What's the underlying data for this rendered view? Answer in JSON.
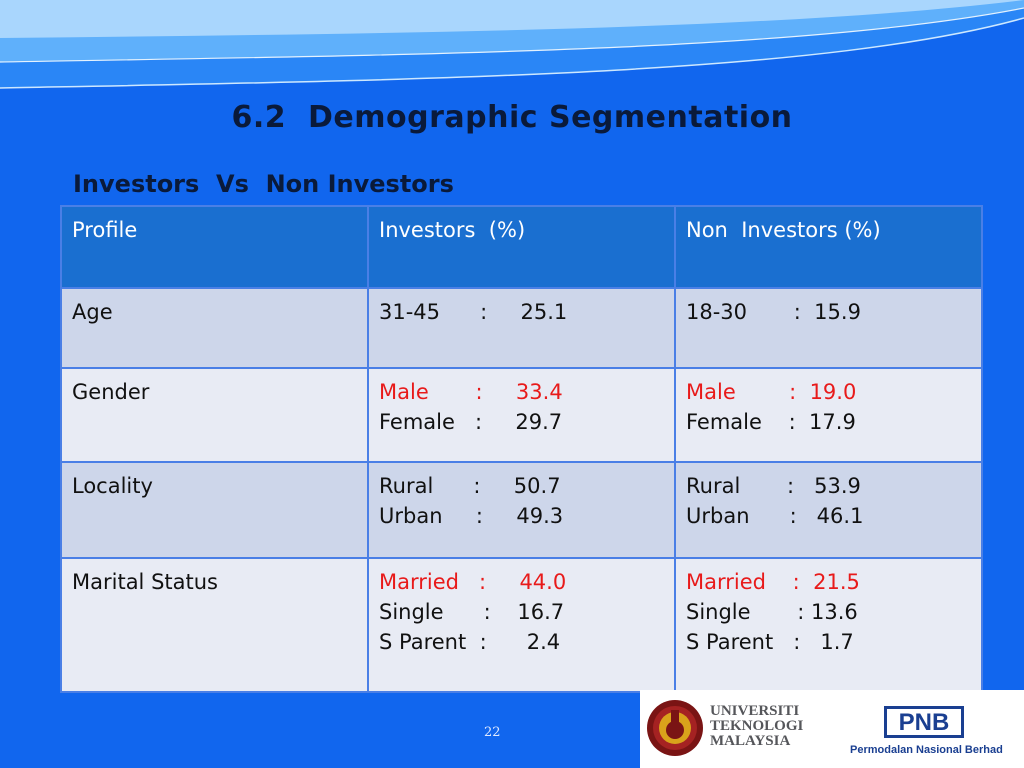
{
  "slide": {
    "title": "6.2  Demographic Segmentation",
    "subtitle": "Investors  Vs  Non Investors",
    "page_number": "22"
  },
  "table": {
    "headers": [
      "Profile",
      "Investors  (%)",
      "Non  Investors (%)"
    ],
    "rows": [
      {
        "profile": "Age",
        "investors": [
          {
            "text": "31-45      :     25.1",
            "highlight": false
          }
        ],
        "non_investors": [
          {
            "text": "18-30       :  15.9",
            "highlight": false
          }
        ]
      },
      {
        "profile": "Gender",
        "investors": [
          {
            "text": "Male       :     33.4",
            "highlight": true
          },
          {
            "text": "Female   :     29.7",
            "highlight": false
          }
        ],
        "non_investors": [
          {
            "text": "Male        :  19.0",
            "highlight": true
          },
          {
            "text": "Female    :  17.9",
            "highlight": false
          }
        ]
      },
      {
        "profile": "Locality",
        "investors": [
          {
            "text": "Rural      :     50.7",
            "highlight": false
          },
          {
            "text": "Urban     :     49.3",
            "highlight": false
          }
        ],
        "non_investors": [
          {
            "text": "Rural       :   53.9",
            "highlight": false
          },
          {
            "text": "Urban      :   46.1",
            "highlight": false
          }
        ]
      },
      {
        "profile": "Marital Status",
        "investors": [
          {
            "text": "Married   :     44.0",
            "highlight": true
          },
          {
            "text": "Single      :    16.7",
            "highlight": false
          },
          {
            "text": "S Parent  :      2.4",
            "highlight": false
          }
        ],
        "non_investors": [
          {
            "text": "Married    :  21.5",
            "highlight": true
          },
          {
            "text": "Single       : 13.6",
            "highlight": false
          },
          {
            "text": "S Parent   :   1.7",
            "highlight": false
          }
        ]
      }
    ]
  },
  "logos": {
    "utm": "UNIVERSITI\nTEKNOLOGI\nMALAYSIA",
    "pnb": "PNB",
    "pnb_name": "Permodalan Nasional Berhad"
  },
  "colors": {
    "background": "#1166ee",
    "header_fill": "#1a6fd0",
    "row_odd": "#cdd6ea",
    "row_even": "#e8ebf4",
    "highlight_text": "#e81a1a",
    "title_text": "#0a1a3a"
  }
}
